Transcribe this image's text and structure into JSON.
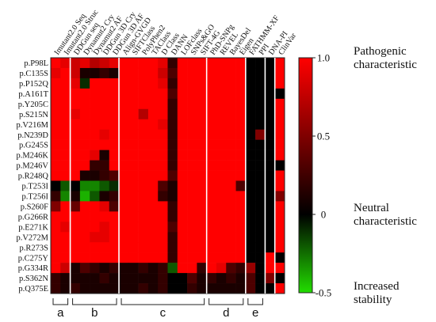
{
  "chart_data": {
    "type": "heatmap",
    "columns": [
      "Imutant2.0 Seq",
      "Imutant2.0 Struc",
      "DDGun seq",
      "Dynamut2 Cry",
      "Dynamut2 AF",
      "DDGun 3D Cry",
      "DDGun 3D AF",
      "Align-GVGD",
      "SIFTClass",
      "PolyPhen2",
      "TAClass",
      "D Class",
      "DANN",
      "LOFclass",
      "SNPs&GO",
      "SIFT-4G",
      "PhD-SNPg",
      "REVEL",
      "BayesDel",
      "Eigen",
      "FATHMM-XF",
      "PPI",
      "DNA-PI",
      "ClinVar"
    ],
    "rows": [
      "p.P98L",
      "p.C135S",
      "p.P152Q",
      "p.A161T",
      "p.Y205C",
      "p.S215N",
      "p.V216M",
      "p.N239D",
      "p.G245S",
      "p.M246K",
      "p.M246V",
      "p.R248Q",
      "p.T253I",
      "p.T256I",
      "p.S260F",
      "p.G266R",
      "p.E271K",
      "p.V272M",
      "p.R273S",
      "p.C275Y",
      "p.G334R",
      "p.S362N",
      "p.Q375E"
    ],
    "groups": [
      {
        "label": "a",
        "start": 0,
        "end": 1
      },
      {
        "label": "b",
        "start": 2,
        "end": 6
      },
      {
        "label": "c",
        "start": 7,
        "end": 15
      },
      {
        "label": "d",
        "start": 16,
        "end": 19
      },
      {
        "label": "e",
        "start": 20,
        "end": 21
      }
    ],
    "separators_after": [
      1,
      6,
      15,
      19,
      21,
      22
    ],
    "colorbar": {
      "range": [
        -0.5,
        1.0
      ],
      "ticks": [
        "1.0",
        "0.5",
        "0",
        "-0.5"
      ],
      "tick_values": [
        1.0,
        0.5,
        0,
        -0.5
      ],
      "labels": [
        {
          "value": 1.0,
          "line1": "Pathogenic",
          "line2": "characteristic"
        },
        {
          "value": 0,
          "line1": "Neutral",
          "line2": "characteristic"
        },
        {
          "value": -0.5,
          "line1": "Increased",
          "line2": "stability"
        }
      ],
      "colors": {
        "high": "#ff0000",
        "mid": "#000000",
        "low": "#22dd00"
      }
    },
    "no_data_color": "#000000",
    "values": [
      [
        1,
        0.9,
        0.8,
        0.9,
        0.7,
        0.8,
        0.9,
        1,
        1,
        1,
        1,
        0.9,
        0.2,
        1,
        1,
        1,
        1,
        1,
        1,
        1,
        null,
        null,
        null,
        1
      ],
      [
        0.9,
        1,
        0.8,
        0.1,
        0.1,
        0.2,
        0.1,
        1,
        1,
        1,
        1,
        0.8,
        0.3,
        1,
        1,
        1,
        1,
        1,
        1,
        1,
        null,
        null,
        null,
        1
      ],
      [
        1,
        1,
        0.9,
        -0.1,
        1,
        1,
        1,
        1,
        1,
        1,
        1,
        0.9,
        0.2,
        1,
        1,
        1,
        1,
        1,
        1,
        1,
        null,
        null,
        null,
        1
      ],
      [
        1,
        1,
        1,
        1,
        1,
        1,
        1,
        1,
        1,
        1,
        1,
        1,
        0.3,
        1,
        1,
        1,
        1,
        1,
        1,
        1,
        null,
        null,
        null,
        null
      ],
      [
        1,
        1,
        1,
        1,
        1,
        1,
        1,
        1,
        1,
        1,
        1,
        1,
        0.2,
        1,
        1,
        1,
        1,
        1,
        1,
        1,
        null,
        null,
        null,
        1
      ],
      [
        1,
        1,
        0.9,
        1,
        1,
        1,
        1,
        1,
        1,
        0.7,
        1,
        1,
        0.2,
        1,
        1,
        1,
        1,
        1,
        1,
        1,
        null,
        null,
        null,
        1
      ],
      [
        1,
        1,
        1,
        1,
        1,
        1,
        1,
        1,
        1,
        1,
        1,
        0.9,
        0.2,
        1,
        1,
        1,
        1,
        1,
        1,
        1,
        null,
        null,
        null,
        1
      ],
      [
        1,
        1,
        1,
        1,
        1,
        0.9,
        1,
        1,
        1,
        1,
        1,
        1,
        0.2,
        1,
        1,
        1,
        1,
        1,
        1,
        1,
        null,
        0.5,
        null,
        1
      ],
      [
        1,
        1,
        1,
        1,
        1,
        1,
        1,
        1,
        1,
        1,
        1,
        1,
        0.2,
        1,
        1,
        1,
        1,
        1,
        1,
        1,
        null,
        null,
        null,
        1
      ],
      [
        1,
        1,
        1,
        1,
        0.9,
        0.1,
        1,
        1,
        1,
        1,
        1,
        1,
        0.2,
        1,
        1,
        1,
        1,
        1,
        1,
        1,
        null,
        null,
        null,
        1
      ],
      [
        1,
        1,
        1,
        1,
        0.2,
        0.2,
        1,
        1,
        1,
        1,
        1,
        1,
        0.2,
        1,
        1,
        1,
        1,
        1,
        1,
        1,
        null,
        null,
        null,
        null
      ],
      [
        1,
        1,
        1,
        0.1,
        0.1,
        0.2,
        0.3,
        1,
        1,
        1,
        1,
        1,
        0.3,
        1,
        1,
        1,
        1,
        1,
        1,
        1,
        null,
        null,
        null,
        1
      ],
      [
        0,
        -0.2,
        0,
        -0.3,
        -0.3,
        -0.2,
        -0.1,
        1,
        1,
        1,
        1,
        0.3,
        0.1,
        1,
        1,
        1,
        1,
        1,
        1,
        0.3,
        null,
        null,
        null,
        1
      ],
      [
        0.2,
        -0.3,
        0.1,
        -0.4,
        -0.2,
        0.1,
        0.2,
        1,
        1,
        1,
        1,
        0.2,
        0.1,
        1,
        1,
        1,
        1,
        1,
        1,
        1,
        null,
        null,
        null,
        0.5
      ],
      [
        0.5,
        1,
        0.4,
        1,
        1,
        0.9,
        0.3,
        1,
        1,
        1,
        1,
        1,
        0.2,
        1,
        1,
        1,
        1,
        1,
        1,
        1,
        null,
        null,
        null,
        1
      ],
      [
        1,
        1,
        1,
        1,
        1,
        1,
        1,
        1,
        1,
        1,
        1,
        1,
        0.2,
        1,
        1,
        1,
        1,
        1,
        1,
        1,
        null,
        null,
        null,
        1
      ],
      [
        1,
        0.9,
        1,
        1,
        1,
        0.9,
        1,
        1,
        1,
        1,
        1,
        1,
        0.3,
        1,
        1,
        1,
        1,
        1,
        1,
        1,
        null,
        null,
        null,
        1
      ],
      [
        1,
        1,
        1,
        1,
        0.9,
        0.9,
        1,
        1,
        1,
        1,
        1,
        1,
        0.2,
        1,
        1,
        1,
        1,
        1,
        1,
        1,
        null,
        null,
        null,
        1
      ],
      [
        1,
        1,
        1,
        1,
        1,
        1,
        1,
        1,
        1,
        1,
        1,
        1,
        0.2,
        1,
        1,
        1,
        1,
        1,
        1,
        1,
        null,
        null,
        null,
        1
      ],
      [
        1,
        1,
        1,
        1,
        1,
        1,
        1,
        1,
        1,
        1,
        1,
        1,
        0.2,
        1,
        1,
        1,
        1,
        1,
        1,
        1,
        null,
        null,
        1,
        null
      ],
      [
        1,
        0.8,
        0.1,
        0.3,
        0.2,
        0.1,
        0.2,
        0.1,
        0.1,
        0.2,
        0.1,
        0.2,
        -0.2,
        1,
        1,
        0.2,
        1,
        0.9,
        0.3,
        0.2,
        0.6,
        null,
        1,
        1
      ],
      [
        0.2,
        0.1,
        0.1,
        0.1,
        0.1,
        0.2,
        0.1,
        0.1,
        0.1,
        0.1,
        0.1,
        0.2,
        null,
        null,
        0.3,
        0.1,
        0.2,
        0.1,
        0.2,
        0.1,
        0.3,
        null,
        0.5,
        null
      ],
      [
        0.2,
        0.1,
        0.2,
        0.1,
        0.1,
        0.1,
        0.1,
        0.1,
        0.1,
        0.2,
        0.1,
        0.2,
        null,
        null,
        0.2,
        0.1,
        0.1,
        0.1,
        0.1,
        0.1,
        0.3,
        null,
        null,
        1
      ]
    ]
  }
}
